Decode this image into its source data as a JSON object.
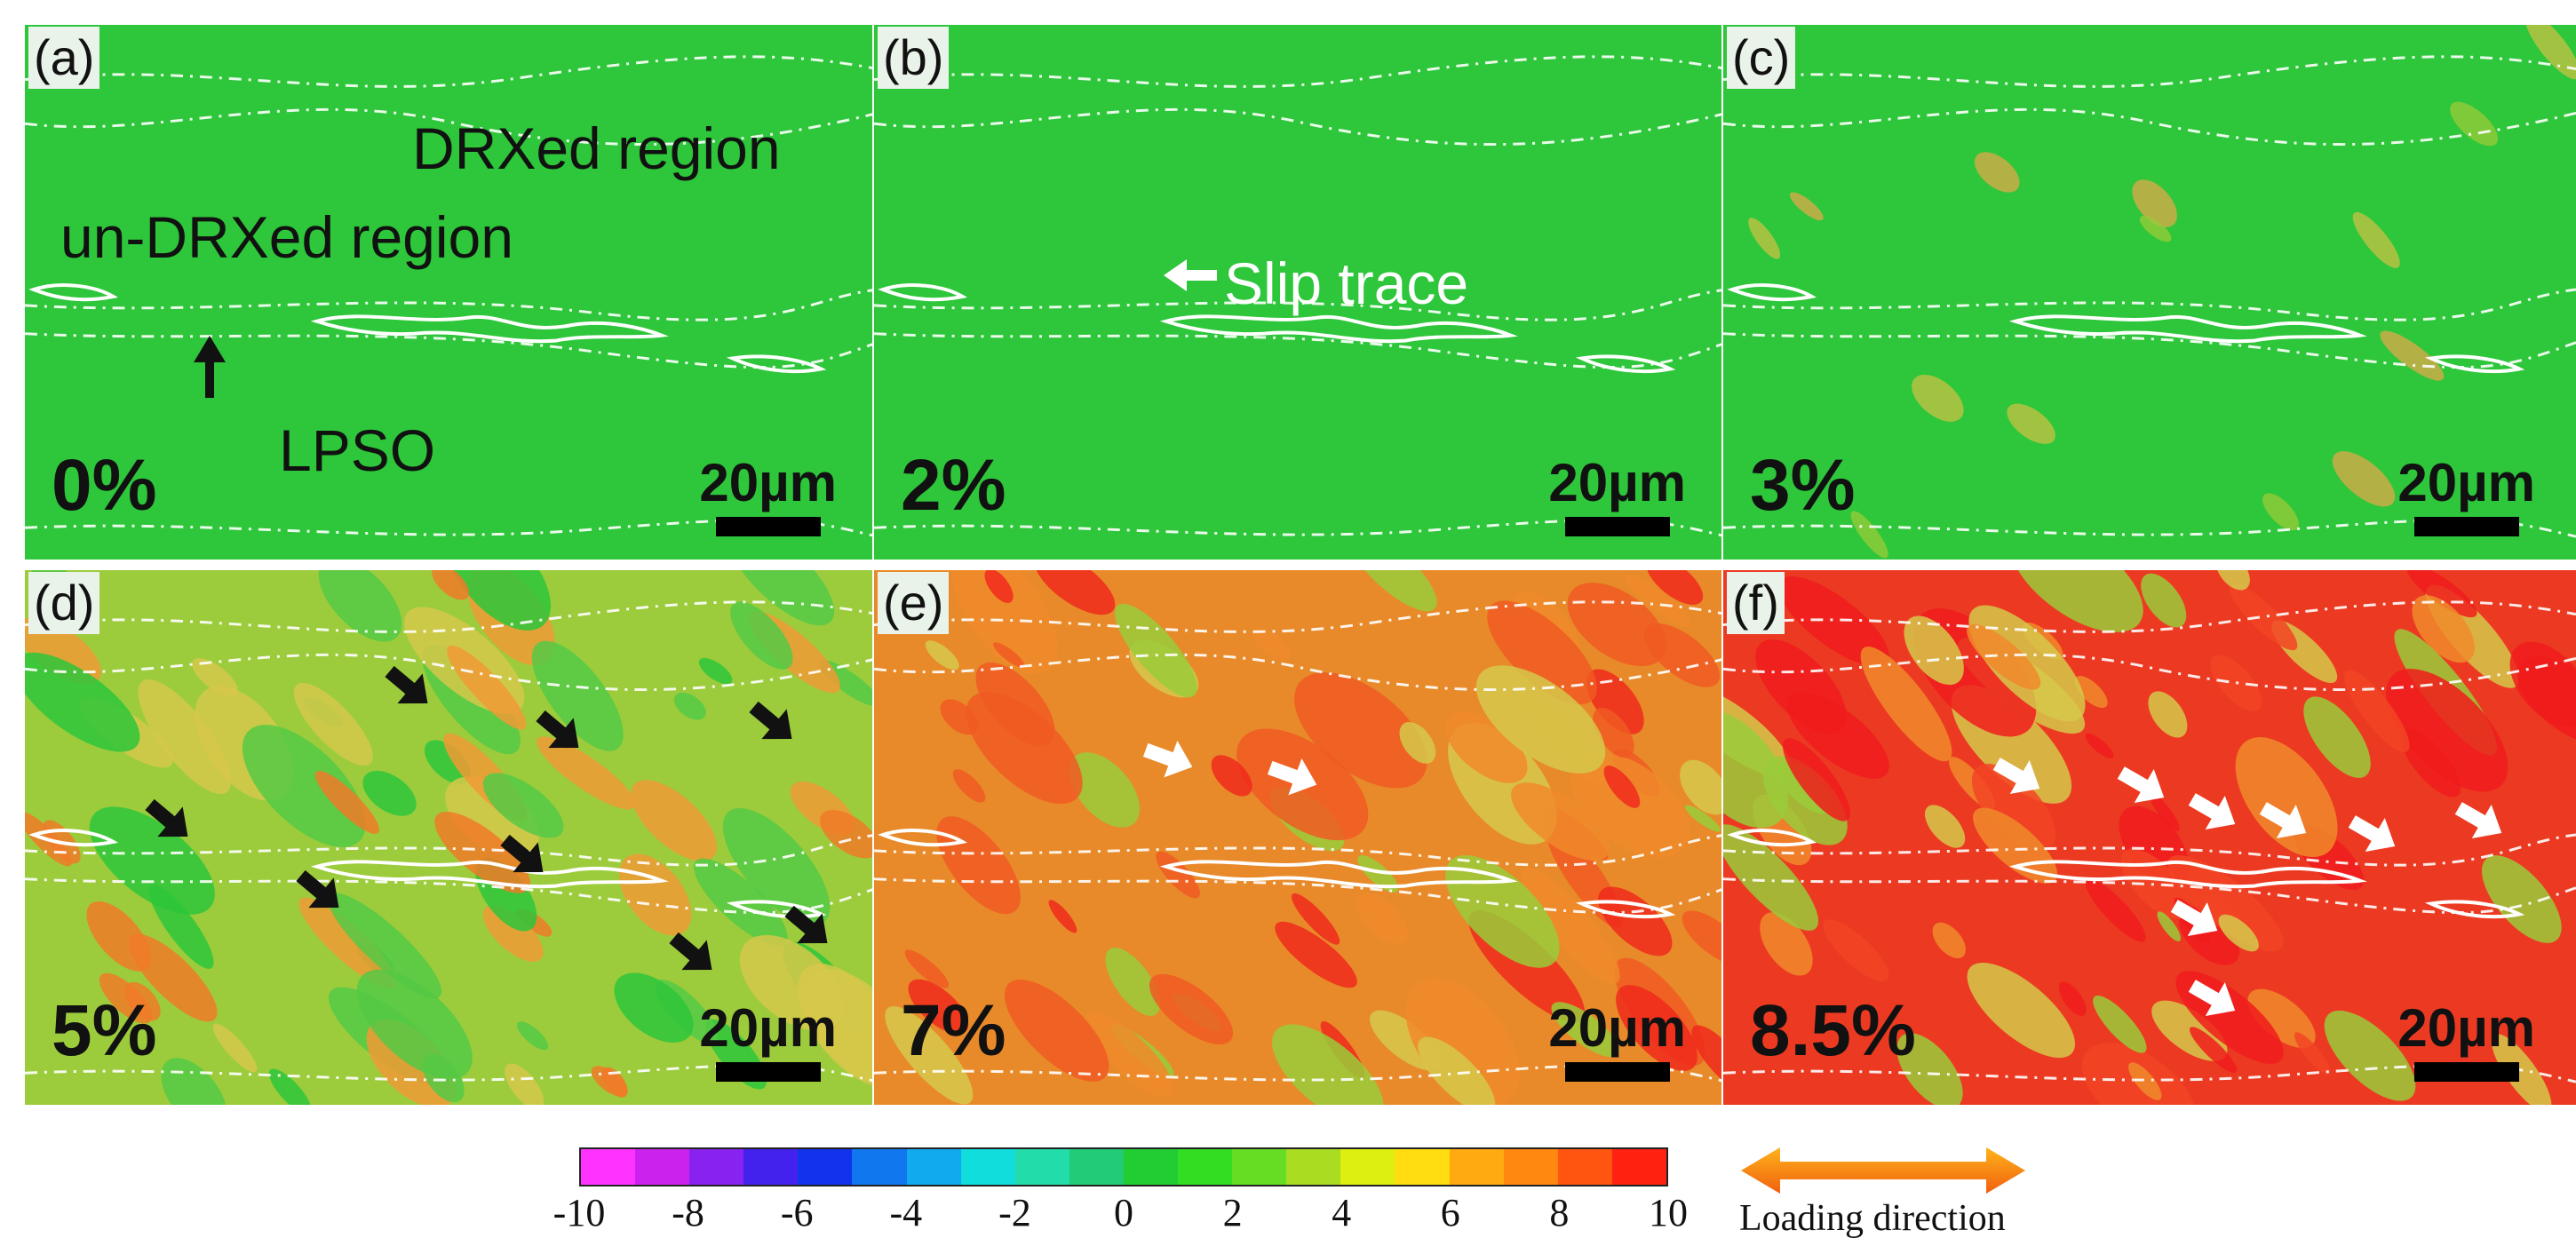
{
  "panels": [
    {
      "label": "(a)",
      "strain": "0%",
      "scale": "20µm",
      "level": 0
    },
    {
      "label": "(b)",
      "strain": "2%",
      "scale": "20µm",
      "level": 1
    },
    {
      "label": "(c)",
      "strain": "3%",
      "scale": "20µm",
      "level": 2
    },
    {
      "label": "(d)",
      "strain": "5%",
      "scale": "20µm",
      "level": 3
    },
    {
      "label": "(e)",
      "strain": "7%",
      "scale": "20µm",
      "level": 4
    },
    {
      "label": "(f)",
      "strain": "8.5%",
      "scale": "20µm",
      "level": 5
    }
  ],
  "annotations": {
    "drx": "DRXed region",
    "undrx": "un-DRXed region",
    "lpso": "LPSO",
    "slip": "Slip trace"
  },
  "colorbar": {
    "ticks": [
      "-10",
      "-8",
      "-6",
      "-4",
      "-2",
      "0",
      "2",
      "4",
      "6",
      "8",
      "10"
    ],
    "colors": [
      "#ff33ff",
      "#cc22ee",
      "#8822ee",
      "#4422ee",
      "#1133ee",
      "#1177ee",
      "#11aaee",
      "#11dddd",
      "#22ddaa",
      "#22cc77",
      "#22cc33",
      "#33dd22",
      "#66dd22",
      "#aadd22",
      "#ddee11",
      "#ffdd11",
      "#ffaa11",
      "#ff8811",
      "#ff5511",
      "#ff2211"
    ]
  },
  "legend": {
    "loading": "Loading direction"
  },
  "colors": {
    "base_green": "#2ec63a",
    "yellow": "#d6c84a",
    "orange": "#f08a2a",
    "red": "#f02a1c"
  }
}
